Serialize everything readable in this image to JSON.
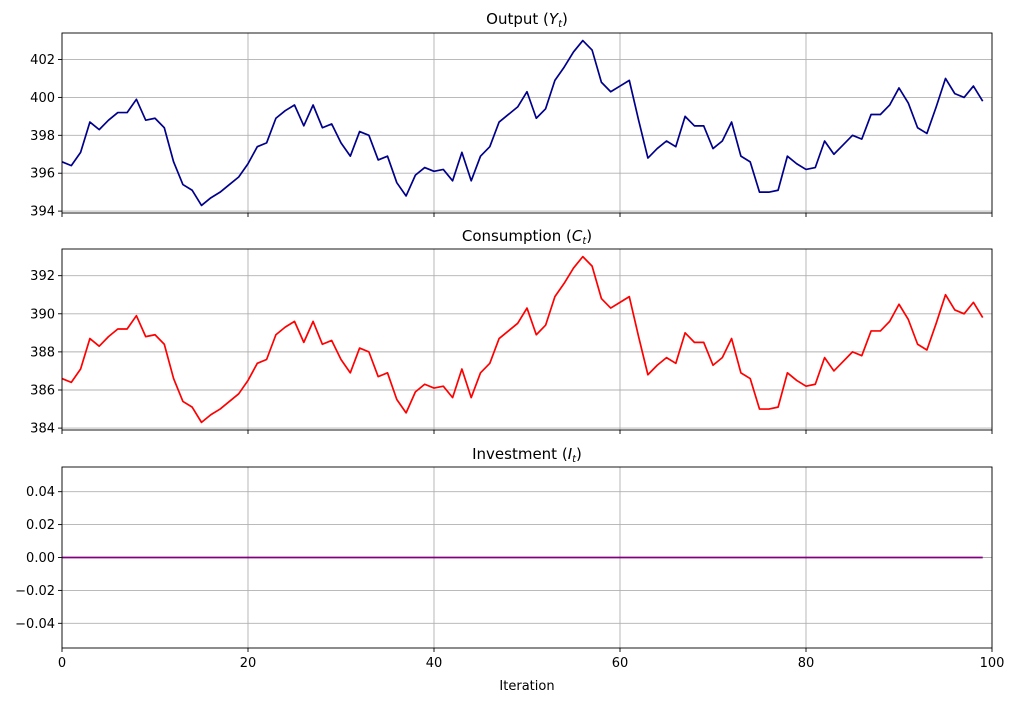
{
  "chart_data": [
    {
      "type": "line",
      "title": "Output (Y_t)",
      "title_parts": {
        "prefix": "Output (",
        "var": "Y",
        "sub": "t",
        "suffix": ")"
      },
      "color": "#00008b",
      "xlim": [
        0,
        100
      ],
      "ylim": [
        393.9,
        403.4
      ],
      "yticks": [
        394,
        396,
        398,
        400,
        402
      ],
      "ytick_labels": [
        "394",
        "396",
        "398",
        "400",
        "402"
      ],
      "grid": true,
      "xlabel": "",
      "x": [
        0,
        1,
        2,
        3,
        4,
        5,
        6,
        7,
        8,
        9,
        10,
        11,
        12,
        13,
        14,
        15,
        16,
        17,
        18,
        19,
        20,
        21,
        22,
        23,
        24,
        25,
        26,
        27,
        28,
        29,
        30,
        31,
        32,
        33,
        34,
        35,
        36,
        37,
        38,
        39,
        40,
        41,
        42,
        43,
        44,
        45,
        46,
        47,
        48,
        49,
        50,
        51,
        52,
        53,
        54,
        55,
        56,
        57,
        58,
        59,
        60,
        61,
        62,
        63,
        64,
        65,
        66,
        67,
        68,
        69,
        70,
        71,
        72,
        73,
        74,
        75,
        76,
        77,
        78,
        79,
        80,
        81,
        82,
        83,
        84,
        85,
        86,
        87,
        88,
        89,
        90,
        91,
        92,
        93,
        94,
        95,
        96,
        97,
        98,
        99
      ],
      "values": [
        396.6,
        396.4,
        397.1,
        398.7,
        398.3,
        398.8,
        399.2,
        399.2,
        399.9,
        398.8,
        398.9,
        398.4,
        396.6,
        395.4,
        395.1,
        394.3,
        394.7,
        395.0,
        395.4,
        395.8,
        396.5,
        397.4,
        397.6,
        398.9,
        399.3,
        399.6,
        398.5,
        399.6,
        398.4,
        398.6,
        397.6,
        396.9,
        398.2,
        398.0,
        396.7,
        396.9,
        395.5,
        394.8,
        395.9,
        396.3,
        396.1,
        396.2,
        395.6,
        397.1,
        395.6,
        396.9,
        397.4,
        398.7,
        399.1,
        399.5,
        400.3,
        398.9,
        399.4,
        400.9,
        401.6,
        402.4,
        403.0,
        402.5,
        400.8,
        400.3,
        400.6,
        400.9,
        398.8,
        396.8,
        397.3,
        397.7,
        397.4,
        399.0,
        398.5,
        398.5,
        397.3,
        397.7,
        398.7,
        396.9,
        396.6,
        395.0,
        395.0,
        395.1,
        396.9,
        396.5,
        396.2,
        396.3,
        397.7,
        397.0,
        397.5,
        398.0,
        397.8,
        399.1,
        399.1,
        399.6,
        400.5,
        399.7,
        398.4,
        398.1,
        399.5,
        401.0,
        400.2,
        400.0,
        400.6,
        399.8
      ]
    },
    {
      "type": "line",
      "title": "Consumption (C_t)",
      "title_parts": {
        "prefix": "Consumption (",
        "var": "C",
        "sub": "t",
        "suffix": ")"
      },
      "color": "#ff0000",
      "xlim": [
        0,
        100
      ],
      "ylim": [
        383.9,
        393.4
      ],
      "yticks": [
        384,
        386,
        388,
        390,
        392
      ],
      "ytick_labels": [
        "384",
        "386",
        "388",
        "390",
        "392"
      ],
      "grid": true,
      "xlabel": "",
      "x": [
        0,
        1,
        2,
        3,
        4,
        5,
        6,
        7,
        8,
        9,
        10,
        11,
        12,
        13,
        14,
        15,
        16,
        17,
        18,
        19,
        20,
        21,
        22,
        23,
        24,
        25,
        26,
        27,
        28,
        29,
        30,
        31,
        32,
        33,
        34,
        35,
        36,
        37,
        38,
        39,
        40,
        41,
        42,
        43,
        44,
        45,
        46,
        47,
        48,
        49,
        50,
        51,
        52,
        53,
        54,
        55,
        56,
        57,
        58,
        59,
        60,
        61,
        62,
        63,
        64,
        65,
        66,
        67,
        68,
        69,
        70,
        71,
        72,
        73,
        74,
        75,
        76,
        77,
        78,
        79,
        80,
        81,
        82,
        83,
        84,
        85,
        86,
        87,
        88,
        89,
        90,
        91,
        92,
        93,
        94,
        95,
        96,
        97,
        98,
        99
      ],
      "values": [
        386.6,
        386.4,
        387.1,
        388.7,
        388.3,
        388.8,
        389.2,
        389.2,
        389.9,
        388.8,
        388.9,
        388.4,
        386.6,
        385.4,
        385.1,
        384.3,
        384.7,
        385.0,
        385.4,
        385.8,
        386.5,
        387.4,
        387.6,
        388.9,
        389.3,
        389.6,
        388.5,
        389.6,
        388.4,
        388.6,
        387.6,
        386.9,
        388.2,
        388.0,
        386.7,
        386.9,
        385.5,
        384.8,
        385.9,
        386.3,
        386.1,
        386.2,
        385.6,
        387.1,
        385.6,
        386.9,
        387.4,
        388.7,
        389.1,
        389.5,
        390.3,
        388.9,
        389.4,
        390.9,
        391.6,
        392.4,
        393.0,
        392.5,
        390.8,
        390.3,
        390.6,
        390.9,
        388.8,
        386.8,
        387.3,
        387.7,
        387.4,
        389.0,
        388.5,
        388.5,
        387.3,
        387.7,
        388.7,
        386.9,
        386.6,
        385.0,
        385.0,
        385.1,
        386.9,
        386.5,
        386.2,
        386.3,
        387.7,
        387.0,
        387.5,
        388.0,
        387.8,
        389.1,
        389.1,
        389.6,
        390.5,
        389.7,
        388.4,
        388.1,
        389.5,
        391.0,
        390.2,
        390.0,
        390.6,
        389.8
      ]
    },
    {
      "type": "line",
      "title": "Investment (I_t)",
      "title_parts": {
        "prefix": "Investment (",
        "var": "I",
        "sub": "t",
        "suffix": ")"
      },
      "color": "#800080",
      "xlim": [
        0,
        100
      ],
      "ylim": [
        -0.055,
        0.055
      ],
      "yticks": [
        -0.04,
        -0.02,
        0.0,
        0.02,
        0.04
      ],
      "ytick_labels": [
        "−0.04",
        "−0.02",
        "0.00",
        "0.02",
        "0.04"
      ],
      "grid": true,
      "xlabel": "Iteration",
      "xticks": [
        0,
        20,
        40,
        60,
        80,
        100
      ],
      "xtick_labels": [
        "0",
        "20",
        "40",
        "60",
        "80",
        "100"
      ],
      "x": [
        0,
        99
      ],
      "values": [
        0.0,
        0.0
      ]
    }
  ]
}
